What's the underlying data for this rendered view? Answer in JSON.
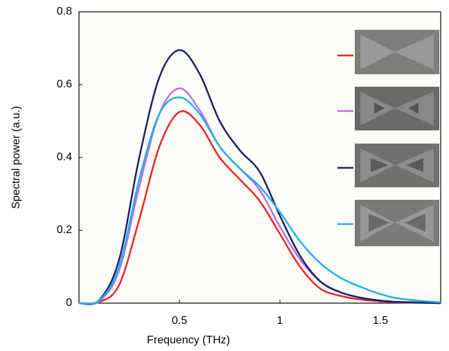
{
  "chart_data": {
    "type": "line",
    "x_label": "Frequency (THz)",
    "y_label": "Spectral power (a.u.)",
    "x": [
      0,
      0.1,
      0.2,
      0.3,
      0.4,
      0.5,
      0.6,
      0.7,
      0.8,
      0.9,
      1.0,
      1.1,
      1.2,
      1.3,
      1.4,
      1.5,
      1.6,
      1.8
    ],
    "series": [
      {
        "color": "#e8262b",
        "values": [
          0,
          0.003,
          0.05,
          0.23,
          0.43,
          0.525,
          0.49,
          0.4,
          0.34,
          0.28,
          0.19,
          0.1,
          0.04,
          0.02,
          0.01,
          0.005,
          0.002,
          0
        ]
      },
      {
        "color": "#c46be8",
        "values": [
          0,
          0.005,
          0.09,
          0.32,
          0.52,
          0.59,
          0.53,
          0.43,
          0.37,
          0.31,
          0.21,
          0.12,
          0.06,
          0.03,
          0.015,
          0.007,
          0.003,
          0
        ]
      },
      {
        "color": "#1c2060",
        "values": [
          0,
          0.008,
          0.12,
          0.4,
          0.62,
          0.695,
          0.63,
          0.5,
          0.42,
          0.36,
          0.24,
          0.13,
          0.06,
          0.03,
          0.015,
          0.007,
          0.003,
          0
        ]
      },
      {
        "color": "#1eb1e8",
        "values": [
          0,
          0.007,
          0.1,
          0.34,
          0.52,
          0.565,
          0.52,
          0.43,
          0.37,
          0.32,
          0.25,
          0.17,
          0.11,
          0.07,
          0.045,
          0.025,
          0.012,
          0.002
        ]
      }
    ],
    "xlim": [
      0,
      1.8
    ],
    "xticks": [
      0.5,
      1,
      1.5
    ],
    "ylim": [
      0,
      0.8
    ],
    "yticks": [
      0,
      0.2,
      0.4,
      0.6,
      0.8
    ]
  }
}
